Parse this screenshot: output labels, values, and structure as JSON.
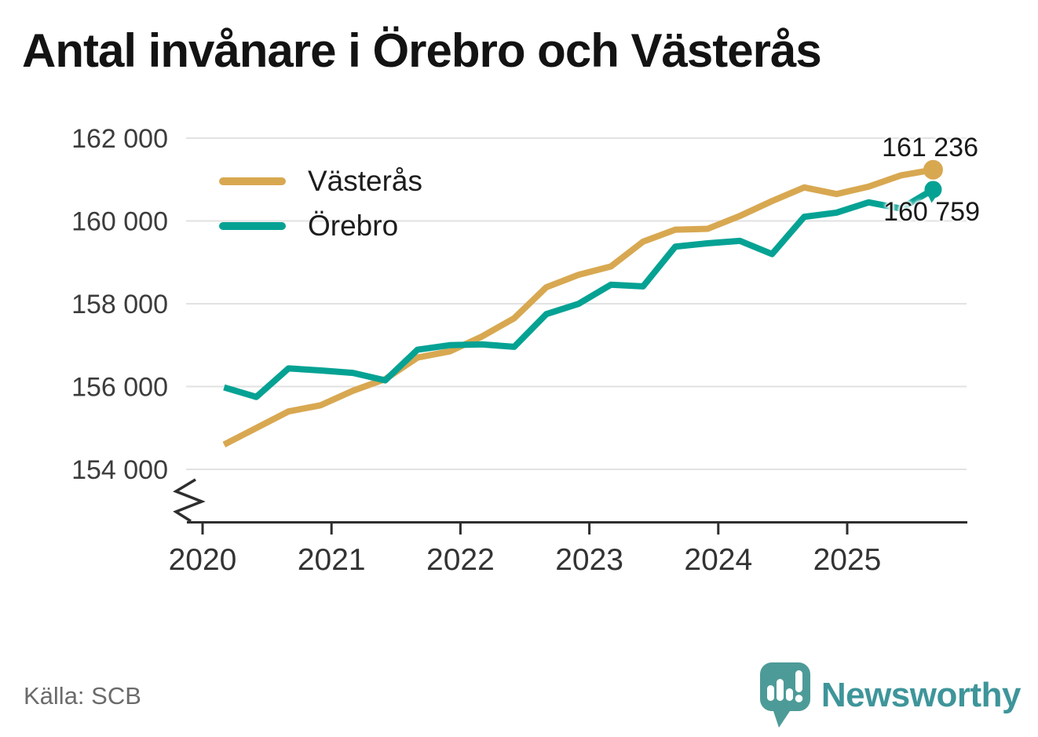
{
  "title": "Antal invånare i Örebro och Västerås",
  "source": "Källa: SCB",
  "branding": {
    "name": "Newsworthy",
    "icon": "newsworthy-bubble-chart-icon",
    "wordmark_color": "#3E959A",
    "icon_color": "#4D9B98"
  },
  "legend": [
    {
      "label": "Västerås",
      "color": "#D8A851"
    },
    {
      "label": "Örebro",
      "color": "#05A294"
    }
  ],
  "end_labels": {
    "vasteras": "161 236",
    "orebro": "160 759"
  },
  "chart_data": {
    "type": "line",
    "title": "Antal invånare i Örebro och Västerås",
    "x_unit": "quarter",
    "grid": "horizontal",
    "legend_position": "top-left-inside",
    "y_axis_break": true,
    "ylim": [
      154000,
      162000
    ],
    "y_ticks": [
      154000,
      156000,
      158000,
      160000,
      162000
    ],
    "y_tick_labels": [
      "154 000",
      "156 000",
      "158 000",
      "160 000",
      "162 000"
    ],
    "x_tick_years": [
      2020,
      2021,
      2022,
      2023,
      2024,
      2025
    ],
    "x_tick_labels": [
      "2020",
      "2021",
      "2022",
      "2023",
      "2024",
      "2025"
    ],
    "x": [
      "2020-03",
      "2020-06",
      "2020-09",
      "2020-12",
      "2021-03",
      "2021-06",
      "2021-09",
      "2021-12",
      "2022-03",
      "2022-06",
      "2022-09",
      "2022-12",
      "2023-03",
      "2023-06",
      "2023-09",
      "2023-12",
      "2024-03",
      "2024-06",
      "2024-09",
      "2024-12",
      "2025-03",
      "2025-06",
      "2025-09"
    ],
    "series": [
      {
        "name": "Västerås",
        "color": "#D8A851",
        "last_value": 161236,
        "values": [
          154600,
          155000,
          155400,
          155550,
          155900,
          156180,
          156700,
          156850,
          157210,
          157650,
          158400,
          158700,
          158900,
          159500,
          159790,
          159810,
          160120,
          160480,
          160810,
          160650,
          160830,
          161100,
          161236
        ]
      },
      {
        "name": "Örebro",
        "color": "#05A294",
        "last_value": 160759,
        "values": [
          155980,
          155750,
          156440,
          156390,
          156330,
          156150,
          156890,
          157000,
          157020,
          156960,
          157750,
          158000,
          158460,
          158420,
          159380,
          159460,
          159520,
          159200,
          160100,
          160200,
          160450,
          160300,
          160759
        ]
      }
    ]
  }
}
